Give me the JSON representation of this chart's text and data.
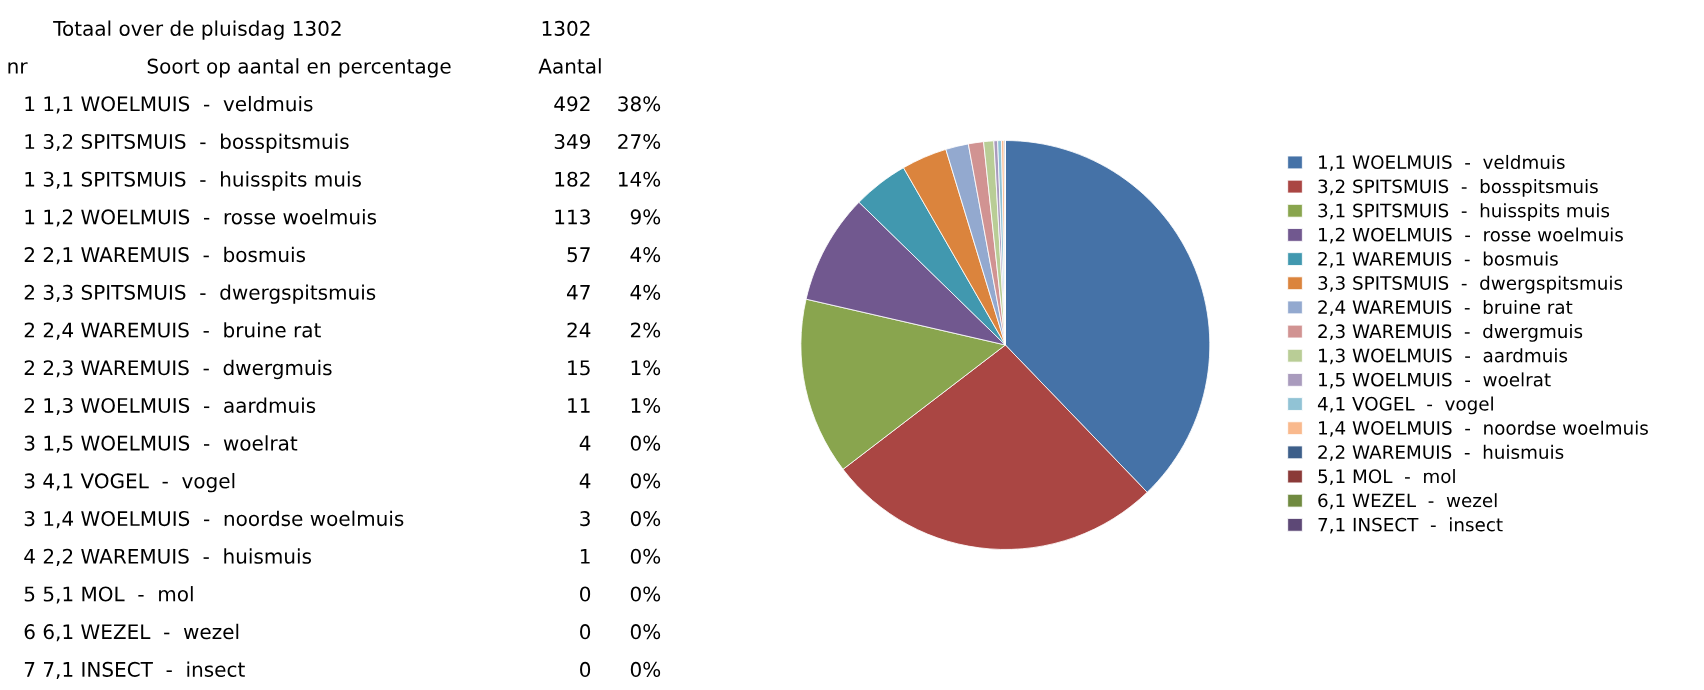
{
  "chart_data": [
    {
      "type": "other",
      "title": "Totaal over de pluisdag 1302",
      "annotations": [
        "1302",
        "nr",
        "Soort op aantal en percentage",
        "Aantal",
        "1 1,1 WOELMUIS  -  veldmuis",
        "492",
        "38%",
        "1 3,2 SPITSMUIS  -  bosspitsmuis",
        "349",
        "27%",
        "1 3,1 SPITSMUIS  -  huisspits muis",
        "182",
        "14%",
        "1 1,2 WOELMUIS  -  rosse woelmuis",
        "113",
        "9%",
        "2 2,1 WAREMUIS  -  bosmuis",
        "57",
        "4%",
        "2 3,3 SPITSMUIS  -  dwergspitsmuis",
        "47",
        "4%",
        "2 2,4 WAREMUIS  -  bruine rat",
        "24",
        "2%",
        "2 2,3 WAREMUIS  -  dwergmuis",
        "15",
        "1%",
        "2 1,3 WOELMUIS  -  aardmuis",
        "11",
        "1%",
        "3 1,5 WOELMUIS  -  woelrat",
        "4",
        "0%",
        "3 4,1 VOGEL  -  vogel",
        "4",
        "0%",
        "3 1,4 WOELMUIS  -  noordse woelmuis",
        "3",
        "0%",
        "4 2,2 WAREMUIS  -  huismuis",
        "1",
        "0%",
        "5 5,1 MOL  -  mol",
        "0",
        "0%",
        "6 6,1 WEZEL  -  wezel",
        "0",
        "0%",
        "7 7,1 INSECT  -  insect",
        "0",
        "0%"
      ]
    },
    {
      "type": "pie",
      "categories": [
        "1,1 WOELMUIS  -  veldmuis",
        "3,2 SPITSMUIS  -  bosspitsmuis",
        "3,1 SPITSMUIS  -  huisspits muis",
        "1,2 WOELMUIS  -  rosse woelmuis",
        "2,1 WAREMUIS  -  bosmuis",
        "3,3 SPITSMUIS  -  dwergspitsmuis",
        "2,4 WAREMUIS  -  bruine rat",
        "2,3 WAREMUIS  -  dwergmuis",
        "1,3 WOELMUIS  -  aardmuis",
        "1,5 WOELMUIS  -  woelrat",
        "4,1 VOGEL  -  vogel",
        "1,4 WOELMUIS  -  noordse woelmuis",
        "2,2 WAREMUIS  -  huismuis",
        "5,1 MOL  -  mol",
        "6,1 WEZEL  -  wezel",
        "7,1 INSECT  -  insect"
      ],
      "values": [
        37.8,
        26.8,
        14.0,
        8.7,
        4.4,
        3.6,
        1.8,
        1.2,
        0.8,
        0.3,
        0.3,
        0.2,
        0.1,
        0,
        0,
        0
      ],
      "colors": [
        "#4572a7",
        "#aa4643",
        "#89a54e",
        "#71588f",
        "#4198af",
        "#db843d",
        "#93a9cf",
        "#d19392",
        "#b9cd96",
        "#a99bbd",
        "#91c3d5",
        "#f9b98d",
        "#3d5f8a",
        "#8b3a38",
        "#708a40",
        "#5d4876"
      ],
      "legend": "right"
    }
  ]
}
